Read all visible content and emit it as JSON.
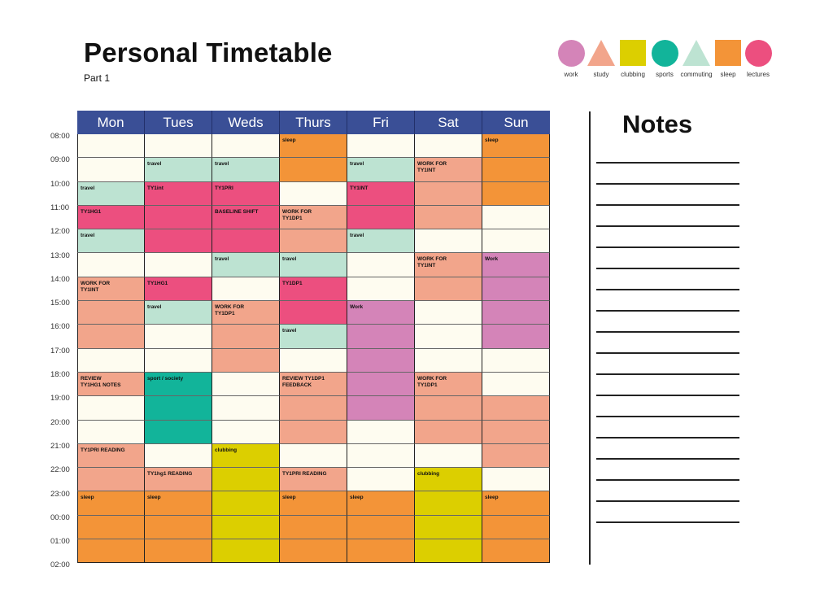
{
  "title": "Personal Timetable",
  "subtitle": "Part 1",
  "legend": [
    {
      "label": "work",
      "shape": "circle",
      "color": "#d484b8"
    },
    {
      "label": "study",
      "shape": "triangle",
      "color": "#f2a58b"
    },
    {
      "label": "clubbing",
      "shape": "square",
      "color": "#dccf00"
    },
    {
      "label": "sports",
      "shape": "circle",
      "color": "#12b49a"
    },
    {
      "label": "commuting",
      "shape": "triangle",
      "color": "#bde3d2"
    },
    {
      "label": "sleep",
      "shape": "square",
      "color": "#f39438"
    },
    {
      "label": "lectures",
      "shape": "circle",
      "color": "#ec4f7f"
    }
  ],
  "colors": {
    "empty": "#fefcf0",
    "work": "#d484b8",
    "study": "#f2a58b",
    "clubbing": "#dccf00",
    "sports": "#12b49a",
    "commuting": "#bde3d2",
    "sleep": "#f39438",
    "lectures": "#ec4f7f",
    "header": "#3a4f96"
  },
  "days": [
    "Mon",
    "Tues",
    "Weds",
    "Thurs",
    "Fri",
    "Sat",
    "Sun"
  ],
  "times": [
    "08:00",
    "09:00",
    "10:00",
    "11:00",
    "12:00",
    "13:00",
    "14:00",
    "15:00",
    "16:00",
    "17:00",
    "18:00",
    "19:00",
    "20:00",
    "21:00",
    "22:00",
    "23:00",
    "00:00",
    "01:00",
    "02:00"
  ],
  "slots": [
    [
      {
        "t": "",
        "c": "empty"
      },
      {
        "t": "",
        "c": "empty"
      },
      {
        "t": "",
        "c": "empty"
      },
      {
        "t": "sleep",
        "c": "sleep"
      },
      {
        "t": "",
        "c": "empty"
      },
      {
        "t": "",
        "c": "empty"
      },
      {
        "t": "sleep",
        "c": "sleep"
      }
    ],
    [
      {
        "t": "",
        "c": "empty"
      },
      {
        "t": "travel",
        "c": "commuting"
      },
      {
        "t": "travel",
        "c": "commuting"
      },
      {
        "t": "",
        "c": "sleep"
      },
      {
        "t": "travel",
        "c": "commuting"
      },
      {
        "t": "WORK FOR\nTY1INT",
        "c": "study"
      },
      {
        "t": "",
        "c": "sleep"
      }
    ],
    [
      {
        "t": "travel",
        "c": "commuting"
      },
      {
        "t": "TY1int",
        "c": "lectures"
      },
      {
        "t": "TY1PRI",
        "c": "lectures"
      },
      {
        "t": "",
        "c": "empty"
      },
      {
        "t": "TY1INT",
        "c": "lectures"
      },
      {
        "t": "",
        "c": "study"
      },
      {
        "t": "",
        "c": "sleep"
      }
    ],
    [
      {
        "t": "TY1HG1",
        "c": "lectures"
      },
      {
        "t": "",
        "c": "lectures"
      },
      {
        "t": "BASELINE SHIFT",
        "c": "lectures"
      },
      {
        "t": "WORK FOR\nTY1DP1",
        "c": "study"
      },
      {
        "t": "",
        "c": "lectures"
      },
      {
        "t": "",
        "c": "study"
      },
      {
        "t": "",
        "c": "empty"
      }
    ],
    [
      {
        "t": "travel",
        "c": "commuting"
      },
      {
        "t": "",
        "c": "lectures"
      },
      {
        "t": "",
        "c": "lectures"
      },
      {
        "t": "",
        "c": "study"
      },
      {
        "t": "travel",
        "c": "commuting"
      },
      {
        "t": "",
        "c": "empty"
      },
      {
        "t": "",
        "c": "empty"
      }
    ],
    [
      {
        "t": "",
        "c": "empty"
      },
      {
        "t": "",
        "c": "empty"
      },
      {
        "t": "travel",
        "c": "commuting"
      },
      {
        "t": "travel",
        "c": "commuting"
      },
      {
        "t": "",
        "c": "empty"
      },
      {
        "t": "WORK FOR\nTY1INT",
        "c": "study"
      },
      {
        "t": "Work",
        "c": "work"
      }
    ],
    [
      {
        "t": "WORK FOR\nTY1INT",
        "c": "study"
      },
      {
        "t": "TY1HG1",
        "c": "lectures"
      },
      {
        "t": "",
        "c": "empty"
      },
      {
        "t": "TY1DP1",
        "c": "lectures"
      },
      {
        "t": "",
        "c": "empty"
      },
      {
        "t": "",
        "c": "study"
      },
      {
        "t": "",
        "c": "work"
      }
    ],
    [
      {
        "t": "",
        "c": "study"
      },
      {
        "t": "travel",
        "c": "commuting"
      },
      {
        "t": "WORK FOR\nTY1DP1",
        "c": "study"
      },
      {
        "t": "",
        "c": "lectures"
      },
      {
        "t": "Work",
        "c": "work"
      },
      {
        "t": "",
        "c": "empty"
      },
      {
        "t": "",
        "c": "work"
      }
    ],
    [
      {
        "t": "",
        "c": "study"
      },
      {
        "t": "",
        "c": "empty"
      },
      {
        "t": "",
        "c": "study"
      },
      {
        "t": "travel",
        "c": "commuting"
      },
      {
        "t": "",
        "c": "work"
      },
      {
        "t": "",
        "c": "empty"
      },
      {
        "t": "",
        "c": "work"
      }
    ],
    [
      {
        "t": "",
        "c": "empty"
      },
      {
        "t": "",
        "c": "empty"
      },
      {
        "t": "",
        "c": "study"
      },
      {
        "t": "",
        "c": "empty"
      },
      {
        "t": "",
        "c": "work"
      },
      {
        "t": "",
        "c": "empty"
      },
      {
        "t": "",
        "c": "empty"
      }
    ],
    [
      {
        "t": "REVIEW\nTY1HG1 NOTES",
        "c": "study"
      },
      {
        "t": "sport / society",
        "c": "sports"
      },
      {
        "t": "",
        "c": "empty"
      },
      {
        "t": "REVIEW TY1DP1\nFEEDBACK",
        "c": "study"
      },
      {
        "t": "",
        "c": "work"
      },
      {
        "t": "WORK FOR\nTY1DP1",
        "c": "study"
      },
      {
        "t": "",
        "c": "empty"
      }
    ],
    [
      {
        "t": "",
        "c": "empty"
      },
      {
        "t": "",
        "c": "sports"
      },
      {
        "t": "",
        "c": "empty"
      },
      {
        "t": "",
        "c": "study"
      },
      {
        "t": "",
        "c": "work"
      },
      {
        "t": "",
        "c": "study"
      },
      {
        "t": "",
        "c": "study"
      }
    ],
    [
      {
        "t": "",
        "c": "empty"
      },
      {
        "t": "",
        "c": "sports"
      },
      {
        "t": "",
        "c": "empty"
      },
      {
        "t": "",
        "c": "study"
      },
      {
        "t": "",
        "c": "empty"
      },
      {
        "t": "",
        "c": "study"
      },
      {
        "t": "",
        "c": "study"
      }
    ],
    [
      {
        "t": "TY1PRI READING",
        "c": "study"
      },
      {
        "t": "",
        "c": "empty"
      },
      {
        "t": "clubbing",
        "c": "clubbing"
      },
      {
        "t": "",
        "c": "empty"
      },
      {
        "t": "",
        "c": "empty"
      },
      {
        "t": "",
        "c": "empty"
      },
      {
        "t": "",
        "c": "study"
      }
    ],
    [
      {
        "t": "",
        "c": "study"
      },
      {
        "t": "TY1hg1 READING",
        "c": "study"
      },
      {
        "t": "",
        "c": "clubbing"
      },
      {
        "t": "TY1PRI READING",
        "c": "study"
      },
      {
        "t": "",
        "c": "empty"
      },
      {
        "t": "clubbing",
        "c": "clubbing"
      },
      {
        "t": "",
        "c": "empty"
      }
    ],
    [
      {
        "t": "sleep",
        "c": "sleep"
      },
      {
        "t": "sleep",
        "c": "sleep"
      },
      {
        "t": "",
        "c": "clubbing"
      },
      {
        "t": "sleep",
        "c": "sleep"
      },
      {
        "t": "sleep",
        "c": "sleep"
      },
      {
        "t": "",
        "c": "clubbing"
      },
      {
        "t": "sleep",
        "c": "sleep"
      }
    ],
    [
      {
        "t": "",
        "c": "sleep"
      },
      {
        "t": "",
        "c": "sleep"
      },
      {
        "t": "",
        "c": "clubbing"
      },
      {
        "t": "",
        "c": "sleep"
      },
      {
        "t": "",
        "c": "sleep"
      },
      {
        "t": "",
        "c": "clubbing"
      },
      {
        "t": "",
        "c": "sleep"
      }
    ],
    [
      {
        "t": "",
        "c": "sleep"
      },
      {
        "t": "",
        "c": "sleep"
      },
      {
        "t": "",
        "c": "clubbing"
      },
      {
        "t": "",
        "c": "sleep"
      },
      {
        "t": "",
        "c": "sleep"
      },
      {
        "t": "",
        "c": "clubbing"
      },
      {
        "t": "",
        "c": "sleep"
      }
    ]
  ],
  "notes": {
    "title": "Notes",
    "line_count": 18
  }
}
